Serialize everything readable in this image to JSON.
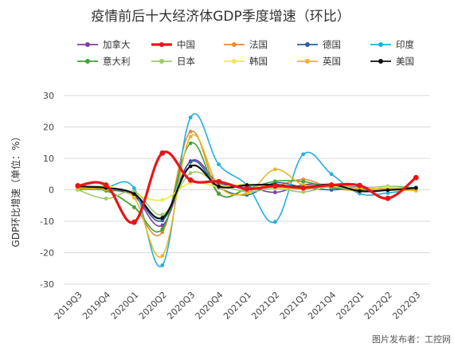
{
  "chart_data": {
    "type": "line",
    "title": "疫情前后十大经济体GDP季度增速（环比）",
    "ylabel": "GDP环比增速（单位：%）",
    "xlabel": "",
    "ylim": [
      -30,
      30
    ],
    "yticks": [
      30,
      20,
      10,
      0,
      -10,
      -20,
      -30
    ],
    "grid": true,
    "legend_position": "top",
    "categories": [
      "2019Q3",
      "2019Q4",
      "2020Q1",
      "2020Q2",
      "2020Q3",
      "2020Q4",
      "2021Q1",
      "2021Q2",
      "2021Q3",
      "2021Q4",
      "2022Q1",
      "2022Q2",
      "2022Q3"
    ],
    "series": [
      {
        "name": "加拿大",
        "color": "#7B3FA0",
        "width": 1.6,
        "values": [
          0.8,
          0.4,
          -2.0,
          -11.3,
          9.1,
          2.2,
          1.1,
          -0.8,
          1.6,
          1.6,
          0.8,
          0.8,
          0.7
        ]
      },
      {
        "name": "中国",
        "color": "#E8141B",
        "width": 3.2,
        "values": [
          1.3,
          1.5,
          -10.3,
          11.7,
          3.1,
          2.6,
          0.3,
          1.2,
          0.6,
          1.5,
          1.4,
          -2.7,
          3.9
        ]
      },
      {
        "name": "法国",
        "color": "#E88A3A",
        "width": 1.6,
        "values": [
          0.3,
          -0.2,
          -5.6,
          -13.5,
          18.5,
          -1.1,
          0.1,
          1.1,
          3.3,
          0.6,
          -0.2,
          0.5,
          0.2
        ]
      },
      {
        "name": "德国",
        "color": "#2E5F9E",
        "width": 1.6,
        "values": [
          0.2,
          0.0,
          -1.8,
          -9.7,
          8.9,
          0.8,
          -1.6,
          2.2,
          0.8,
          0.0,
          0.8,
          0.1,
          0.4
        ]
      },
      {
        "name": "印度",
        "color": "#24AEE0",
        "width": 1.6,
        "values": [
          1.0,
          0.9,
          0.5,
          -24.0,
          23.0,
          8.1,
          1.5,
          -10.2,
          11.3,
          5.0,
          -1.2,
          -1.0,
          0.5
        ]
      },
      {
        "name": "意大利",
        "color": "#3AA73A",
        "width": 1.6,
        "values": [
          0.1,
          -0.3,
          -5.5,
          -12.5,
          14.8,
          -1.3,
          0.3,
          2.7,
          2.6,
          0.7,
          0.1,
          1.1,
          0.5
        ]
      },
      {
        "name": "日本",
        "color": "#9DCB6B",
        "width": 1.6,
        "values": [
          0.0,
          -2.8,
          -0.6,
          -7.9,
          5.3,
          1.9,
          -0.6,
          0.5,
          -0.7,
          1.0,
          -0.5,
          1.1,
          -0.3
        ]
      },
      {
        "name": "韩国",
        "color": "#F2EA3B",
        "width": 1.6,
        "values": [
          0.4,
          1.3,
          -1.3,
          -3.2,
          2.2,
          1.1,
          1.7,
          0.8,
          0.2,
          1.2,
          0.6,
          0.7,
          0.3
        ]
      },
      {
        "name": "英国",
        "color": "#E8B820",
        "width": 1.6,
        "values": [
          0.5,
          0.1,
          -2.5,
          -21.0,
          16.9,
          1.2,
          -1.1,
          6.5,
          1.6,
          1.6,
          0.5,
          0.1,
          -0.2
        ]
      },
      {
        "name": "美国",
        "color": "#111111",
        "width": 2.2,
        "values": [
          1.1,
          0.6,
          -1.3,
          -8.9,
          7.5,
          1.1,
          1.5,
          1.6,
          0.8,
          1.7,
          -0.4,
          -0.1,
          0.6
        ]
      }
    ]
  },
  "watermark": "图片发布者：工控网"
}
